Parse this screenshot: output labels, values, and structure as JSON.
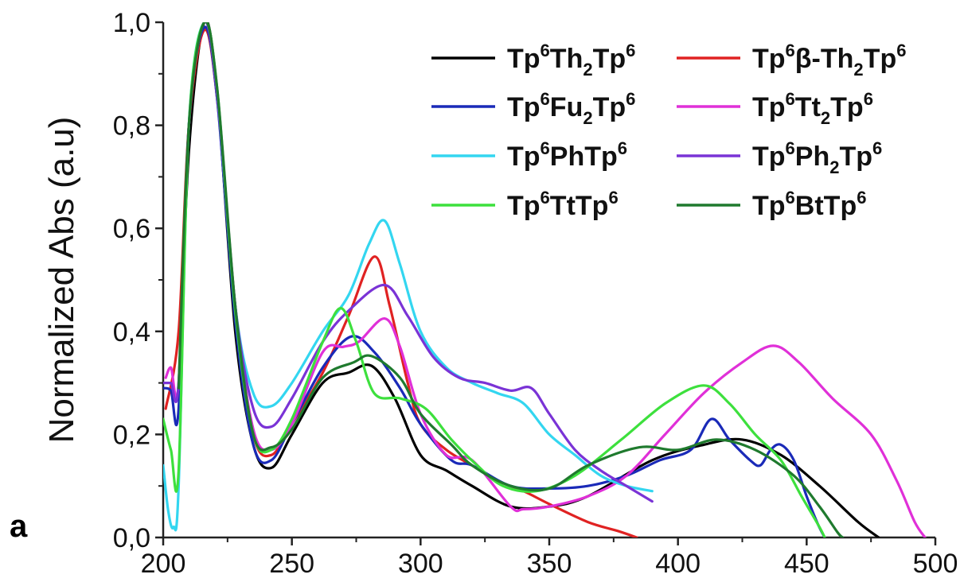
{
  "chart_data": {
    "type": "line",
    "title": "",
    "xlabel": "",
    "ylabel": "Normalized Abs (a.u)",
    "panel_label": "a",
    "xlim": [
      200,
      500
    ],
    "ylim": [
      0.0,
      1.0
    ],
    "x_ticks": [
      "200",
      "250",
      "300",
      "350",
      "400",
      "450",
      "500"
    ],
    "y_ticks": [
      "0,0",
      "0,2",
      "0,4",
      "0,6",
      "0,8",
      "1,0"
    ],
    "grid": false,
    "legend_position": "top-right",
    "series": [
      {
        "name": "Tp6Th2Tp6",
        "label": {
          "a": "Tp",
          "s1": "6",
          "b": "Th",
          "s2": "2",
          "c": "Tp",
          "s3": "6"
        },
        "color": "#000000",
        "points": [
          [
            206,
            0.28
          ],
          [
            210,
            0.75
          ],
          [
            216,
            1.0
          ],
          [
            221,
            0.86
          ],
          [
            228,
            0.4
          ],
          [
            235,
            0.18
          ],
          [
            242,
            0.135
          ],
          [
            250,
            0.2
          ],
          [
            262,
            0.3
          ],
          [
            272,
            0.32
          ],
          [
            281,
            0.333
          ],
          [
            290,
            0.27
          ],
          [
            300,
            0.16
          ],
          [
            310,
            0.13
          ],
          [
            320,
            0.1
          ],
          [
            335,
            0.06
          ],
          [
            350,
            0.06
          ],
          [
            365,
            0.08
          ],
          [
            390,
            0.15
          ],
          [
            410,
            0.18
          ],
          [
            425,
            0.19
          ],
          [
            440,
            0.16
          ],
          [
            455,
            0.1
          ],
          [
            470,
            0.03
          ],
          [
            478,
            0.0
          ]
        ]
      },
      {
        "name": "Tp6β-Th2Tp6",
        "label": {
          "a": "Tp",
          "s1": "6",
          "b": "β-Th",
          "s2": "2",
          "c": "Tp",
          "s3": "6"
        },
        "color": "#e02222",
        "points": [
          [
            201,
            0.25
          ],
          [
            206,
            0.4
          ],
          [
            210,
            0.8
          ],
          [
            216,
            0.985
          ],
          [
            221,
            0.85
          ],
          [
            228,
            0.45
          ],
          [
            235,
            0.2
          ],
          [
            242,
            0.16
          ],
          [
            250,
            0.22
          ],
          [
            262,
            0.32
          ],
          [
            272,
            0.43
          ],
          [
            282,
            0.545
          ],
          [
            288,
            0.45
          ],
          [
            295,
            0.3
          ],
          [
            300,
            0.22
          ],
          [
            310,
            0.17
          ],
          [
            320,
            0.14
          ],
          [
            330,
            0.11
          ],
          [
            340,
            0.09
          ],
          [
            350,
            0.065
          ],
          [
            365,
            0.03
          ],
          [
            377,
            0.012
          ],
          [
            384,
            0.0
          ]
        ]
      },
      {
        "name": "Tp6Fu2Tp6",
        "label": {
          "a": "Tp",
          "s1": "6",
          "b": "Fu",
          "s2": "2",
          "c": "Tp",
          "s3": "6"
        },
        "color": "#1a2ab8",
        "points": [
          [
            200,
            0.29
          ],
          [
            203,
            0.285
          ],
          [
            206,
            0.25
          ],
          [
            210,
            0.8
          ],
          [
            216,
            0.99
          ],
          [
            221,
            0.85
          ],
          [
            228,
            0.42
          ],
          [
            235,
            0.18
          ],
          [
            242,
            0.15
          ],
          [
            250,
            0.22
          ],
          [
            262,
            0.33
          ],
          [
            273,
            0.39
          ],
          [
            282,
            0.36
          ],
          [
            292,
            0.29
          ],
          [
            300,
            0.22
          ],
          [
            312,
            0.15
          ],
          [
            320,
            0.14
          ],
          [
            335,
            0.1
          ],
          [
            350,
            0.095
          ],
          [
            365,
            0.1
          ],
          [
            380,
            0.12
          ],
          [
            393,
            0.15
          ],
          [
            405,
            0.17
          ],
          [
            413,
            0.23
          ],
          [
            420,
            0.19
          ],
          [
            428,
            0.15
          ],
          [
            432,
            0.14
          ],
          [
            436,
            0.17
          ],
          [
            440,
            0.18
          ],
          [
            445,
            0.15
          ],
          [
            450,
            0.08
          ],
          [
            454,
            0.03
          ],
          [
            457,
            0.0
          ]
        ]
      },
      {
        "name": "Tp6Tt2Tp6",
        "label": {
          "a": "Tp",
          "s1": "6",
          "b": "Tt",
          "s2": "2",
          "c": "Tp",
          "s3": "6"
        },
        "color": "#e030d8",
        "points": [
          [
            201,
            0.31
          ],
          [
            203,
            0.33
          ],
          [
            206,
            0.3
          ],
          [
            210,
            0.8
          ],
          [
            216,
            1.0
          ],
          [
            221,
            0.86
          ],
          [
            228,
            0.45
          ],
          [
            235,
            0.21
          ],
          [
            242,
            0.17
          ],
          [
            250,
            0.22
          ],
          [
            262,
            0.36
          ],
          [
            270,
            0.37
          ],
          [
            276,
            0.38
          ],
          [
            286,
            0.425
          ],
          [
            292,
            0.37
          ],
          [
            300,
            0.24
          ],
          [
            310,
            0.16
          ],
          [
            320,
            0.15
          ],
          [
            335,
            0.06
          ],
          [
            340,
            0.055
          ],
          [
            350,
            0.06
          ],
          [
            365,
            0.08
          ],
          [
            380,
            0.12
          ],
          [
            395,
            0.2
          ],
          [
            410,
            0.28
          ],
          [
            425,
            0.34
          ],
          [
            437,
            0.372
          ],
          [
            447,
            0.34
          ],
          [
            460,
            0.27
          ],
          [
            475,
            0.2
          ],
          [
            485,
            0.11
          ],
          [
            492,
            0.03
          ],
          [
            496,
            0.0
          ]
        ]
      },
      {
        "name": "Tp6PhTp6",
        "label": {
          "a": "Tp",
          "s1": "6",
          "b": "PhTp",
          "s2": "",
          "c": "",
          "s3": "6"
        },
        "color": "#33d6f0",
        "points": [
          [
            200,
            0.14
          ],
          [
            202,
            0.05
          ],
          [
            204,
            0.02
          ],
          [
            206,
            0.1
          ],
          [
            210,
            0.8
          ],
          [
            216,
            1.0
          ],
          [
            221,
            0.86
          ],
          [
            228,
            0.45
          ],
          [
            235,
            0.28
          ],
          [
            242,
            0.255
          ],
          [
            250,
            0.3
          ],
          [
            262,
            0.4
          ],
          [
            272,
            0.47
          ],
          [
            280,
            0.57
          ],
          [
            286,
            0.615
          ],
          [
            292,
            0.53
          ],
          [
            300,
            0.4
          ],
          [
            310,
            0.33
          ],
          [
            320,
            0.3
          ],
          [
            330,
            0.28
          ],
          [
            340,
            0.26
          ],
          [
            350,
            0.2
          ],
          [
            360,
            0.16
          ],
          [
            370,
            0.12
          ],
          [
            380,
            0.1
          ],
          [
            390,
            0.09
          ]
        ]
      },
      {
        "name": "Tp6Ph2Tp6",
        "label": {
          "a": "Tp",
          "s1": "6",
          "b": "Ph",
          "s2": "2",
          "c": "Tp",
          "s3": "6"
        },
        "color": "#7a33d6",
        "points": [
          [
            200,
            0.3
          ],
          [
            203,
            0.3
          ],
          [
            206,
            0.3
          ],
          [
            210,
            0.8
          ],
          [
            216,
            1.0
          ],
          [
            221,
            0.86
          ],
          [
            228,
            0.45
          ],
          [
            235,
            0.25
          ],
          [
            242,
            0.215
          ],
          [
            250,
            0.27
          ],
          [
            262,
            0.38
          ],
          [
            272,
            0.44
          ],
          [
            286,
            0.49
          ],
          [
            295,
            0.43
          ],
          [
            305,
            0.35
          ],
          [
            315,
            0.31
          ],
          [
            325,
            0.3
          ],
          [
            335,
            0.285
          ],
          [
            343,
            0.29
          ],
          [
            350,
            0.24
          ],
          [
            360,
            0.17
          ],
          [
            370,
            0.13
          ],
          [
            380,
            0.1
          ],
          [
            390,
            0.07
          ]
        ]
      },
      {
        "name": "Tp6TtTp6",
        "label": {
          "a": "Tp",
          "s1": "6",
          "b": "TtTp",
          "s2": "",
          "c": "",
          "s3": "6"
        },
        "color": "#3de03d",
        "points": [
          [
            200,
            0.23
          ],
          [
            203,
            0.17
          ],
          [
            206,
            0.13
          ],
          [
            210,
            0.8
          ],
          [
            216,
            1.0
          ],
          [
            221,
            0.87
          ],
          [
            228,
            0.44
          ],
          [
            235,
            0.2
          ],
          [
            242,
            0.17
          ],
          [
            250,
            0.23
          ],
          [
            262,
            0.38
          ],
          [
            269,
            0.445
          ],
          [
            275,
            0.38
          ],
          [
            282,
            0.28
          ],
          [
            292,
            0.27
          ],
          [
            302,
            0.25
          ],
          [
            312,
            0.19
          ],
          [
            322,
            0.14
          ],
          [
            332,
            0.1
          ],
          [
            345,
            0.09
          ],
          [
            360,
            0.12
          ],
          [
            378,
            0.19
          ],
          [
            395,
            0.26
          ],
          [
            410,
            0.295
          ],
          [
            420,
            0.26
          ],
          [
            430,
            0.2
          ],
          [
            440,
            0.15
          ],
          [
            448,
            0.08
          ],
          [
            455,
            0.02
          ],
          [
            457,
            0.0
          ]
        ]
      },
      {
        "name": "Tp6BtTp6",
        "label": {
          "a": "Tp",
          "s1": "6",
          "b": "BtTp",
          "s2": "",
          "c": "",
          "s3": "6"
        },
        "color": "#1f7a2e",
        "points": [
          [
            206,
            0.29
          ],
          [
            210,
            0.8
          ],
          [
            216,
            1.0
          ],
          [
            221,
            0.87
          ],
          [
            228,
            0.45
          ],
          [
            235,
            0.2
          ],
          [
            242,
            0.175
          ],
          [
            250,
            0.21
          ],
          [
            262,
            0.31
          ],
          [
            274,
            0.34
          ],
          [
            281,
            0.352
          ],
          [
            292,
            0.31
          ],
          [
            300,
            0.24
          ],
          [
            312,
            0.18
          ],
          [
            320,
            0.14
          ],
          [
            335,
            0.1
          ],
          [
            350,
            0.095
          ],
          [
            365,
            0.14
          ],
          [
            385,
            0.175
          ],
          [
            400,
            0.17
          ],
          [
            415,
            0.19
          ],
          [
            430,
            0.17
          ],
          [
            445,
            0.12
          ],
          [
            455,
            0.06
          ],
          [
            462,
            0.01
          ],
          [
            464,
            0.0
          ]
        ]
      }
    ]
  }
}
